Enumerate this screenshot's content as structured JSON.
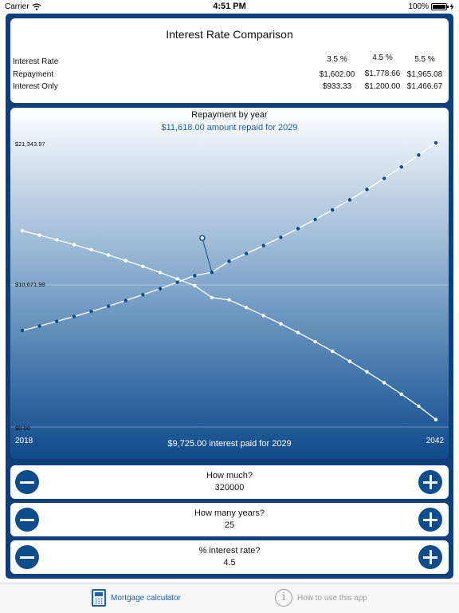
{
  "status_bar": {
    "carrier": "Carrier",
    "time": "4:51 PM",
    "battery": "100%",
    "battery_level": 1.0
  },
  "comparison": {
    "title": "Interest Rate Comparison",
    "rows": [
      {
        "label": "Interest Rate",
        "values": [
          "3.5 %",
          "4.5 %",
          "5.5 %"
        ]
      },
      {
        "label": "Repayment",
        "values": [
          "$1,602.00",
          "$1,778.66",
          "$1,965.08"
        ]
      },
      {
        "label": "Interest Only",
        "values": [
          "$933.33",
          "$1,200.00",
          "$1,466.67"
        ]
      }
    ]
  },
  "chart": {
    "title": "Repayment by year",
    "amount_repaid_text": "$11,618.00 amount repaid for 2029",
    "interest_paid_text": "$9,725.00 interest paid for 2029",
    "y_tick_labels": [
      "$21,343.97",
      "$10,671.98",
      "$0.00"
    ],
    "x_start_label": "2018",
    "x_end_label": "2042",
    "colors": {
      "repayment": "#0d4d8c",
      "interest": "#ffffff",
      "marker": "#0d4d8c"
    }
  },
  "chart_data": {
    "type": "line",
    "title": "Repayment by year",
    "x": [
      2018,
      2019,
      2020,
      2021,
      2022,
      2023,
      2024,
      2025,
      2026,
      2027,
      2028,
      2029,
      2030,
      2031,
      2032,
      2033,
      2034,
      2035,
      2036,
      2037,
      2038,
      2039,
      2040,
      2041,
      2042
    ],
    "xlim": [
      2018,
      2042
    ],
    "ylim": [
      0,
      21343.97
    ],
    "series": [
      {
        "name": "amount repaid",
        "values": [
          7250,
          7585,
          7935,
          8300,
          8680,
          9080,
          9500,
          9935,
          10395,
          10875,
          11375,
          11618,
          12450,
          13025,
          13625,
          14250,
          14905,
          15590,
          16310,
          17065,
          17850,
          18670,
          19535,
          20430,
          21344
        ]
      },
      {
        "name": "interest paid",
        "values": [
          14750,
          14415,
          14065,
          13700,
          13320,
          12920,
          12500,
          12065,
          11605,
          11125,
          10625,
          9725,
          9550,
          8975,
          8375,
          7750,
          7095,
          6410,
          5690,
          4935,
          4150,
          3330,
          2465,
          1570,
          560
        ]
      }
    ],
    "highlight": {
      "x": 2029,
      "repaid": 11618.0,
      "interest": 9725.0
    }
  },
  "controls": [
    {
      "label": "How much?",
      "value": "320000"
    },
    {
      "label": "How many years?",
      "value": "25"
    },
    {
      "label": "% interest rate?",
      "value": "4.5"
    }
  ],
  "tab_bar": {
    "tabs": [
      {
        "label": "Mortgage calculator",
        "icon": "calculator-icon"
      },
      {
        "label": "How to use this app",
        "icon": "info-icon"
      }
    ]
  }
}
